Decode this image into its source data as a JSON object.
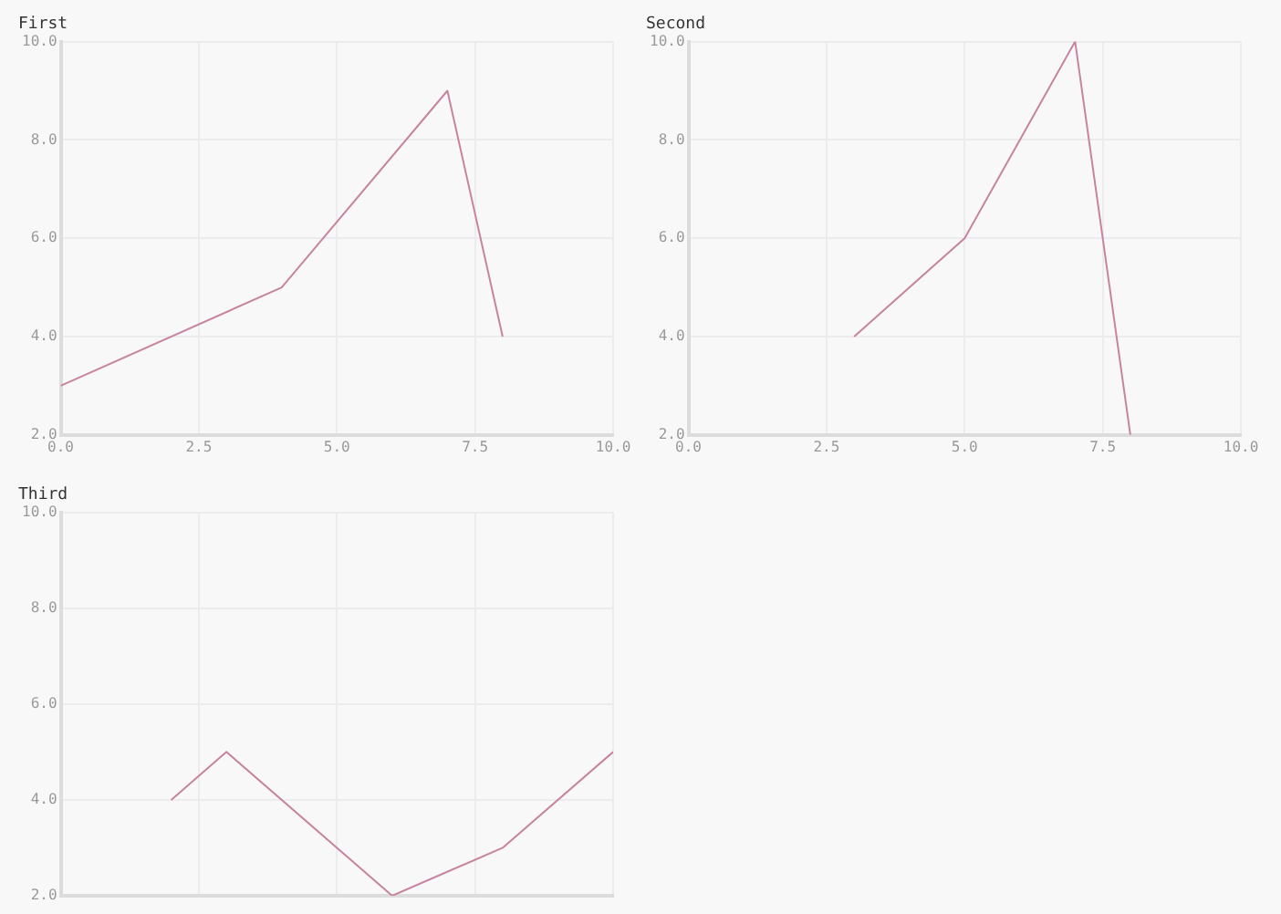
{
  "chart_data": [
    {
      "type": "line",
      "title": "First",
      "x": [
        0,
        4,
        7,
        8
      ],
      "values": [
        3,
        5,
        9,
        4
      ],
      "color": "#c7849e",
      "xlim": [
        0,
        10
      ],
      "xticks": [
        {
          "value": 0,
          "label": "0.0"
        },
        {
          "value": 2.5,
          "label": "2.5"
        },
        {
          "value": 5,
          "label": "5.0"
        },
        {
          "value": 7.5,
          "label": "7.5"
        },
        {
          "value": 10,
          "label": "10.0"
        }
      ],
      "ylim": [
        2,
        10
      ],
      "yticks": [
        {
          "value": 2,
          "label": "2.0"
        },
        {
          "value": 4,
          "label": "4.0"
        },
        {
          "value": 6,
          "label": "6.0"
        },
        {
          "value": 8,
          "label": "8.0"
        },
        {
          "value": 10,
          "label": "10.0"
        }
      ],
      "grid": true,
      "marker": "none"
    },
    {
      "type": "line",
      "title": "Second",
      "x": [
        3,
        5,
        7,
        8
      ],
      "values": [
        4,
        6,
        10,
        2
      ],
      "color": "#c7849e",
      "xlim": [
        0,
        10
      ],
      "xticks": [
        {
          "value": 0,
          "label": "0.0"
        },
        {
          "value": 2.5,
          "label": "2.5"
        },
        {
          "value": 5,
          "label": "5.0"
        },
        {
          "value": 7.5,
          "label": "7.5"
        },
        {
          "value": 10,
          "label": "10.0"
        }
      ],
      "ylim": [
        2,
        10
      ],
      "yticks": [
        {
          "value": 2,
          "label": "2.0"
        },
        {
          "value": 4,
          "label": "4.0"
        },
        {
          "value": 6,
          "label": "6.0"
        },
        {
          "value": 8,
          "label": "8.0"
        },
        {
          "value": 10,
          "label": "10.0"
        }
      ],
      "grid": true,
      "marker": "none"
    },
    {
      "type": "line",
      "title": "Third",
      "x": [
        2,
        3,
        6,
        8,
        10
      ],
      "values": [
        4,
        5,
        2,
        3,
        5
      ],
      "color": "#c7849e",
      "xlim": [
        0,
        10
      ],
      "xticks": [
        {
          "value": 0,
          "label": null
        },
        {
          "value": 2.5,
          "label": null
        },
        {
          "value": 5,
          "label": null
        },
        {
          "value": 7.5,
          "label": null
        },
        {
          "value": 10,
          "label": null
        }
      ],
      "ylim": [
        2,
        10
      ],
      "yticks": [
        {
          "value": 2,
          "label": "2.0"
        },
        {
          "value": 4,
          "label": "4.0"
        },
        {
          "value": 6,
          "label": "6.0"
        },
        {
          "value": 8,
          "label": "8.0"
        },
        {
          "value": 10,
          "label": "10.0"
        }
      ],
      "grid": true,
      "marker": "none",
      "tick_labels": "y"
    }
  ]
}
